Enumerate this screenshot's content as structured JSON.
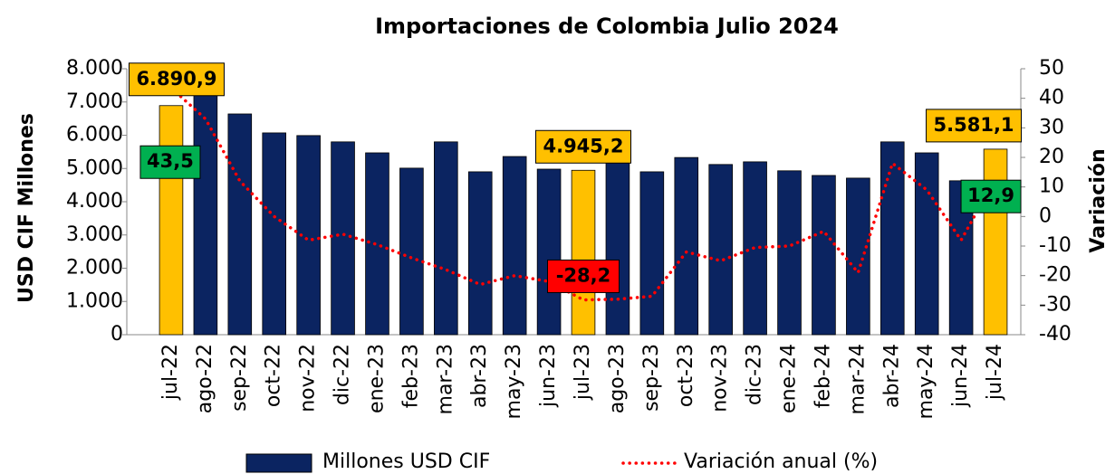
{
  "chart_data": {
    "type": "bar-line",
    "title": "Importaciones de Colombia Julio 2024",
    "y_label": "USD CIF Millones",
    "y2_label": "Variación",
    "categories": [
      "jul-22",
      "ago-22",
      "sep-22",
      "oct-22",
      "nov-22",
      "dic-22",
      "ene-23",
      "feb-23",
      "mar-23",
      "abr-23",
      "may-23",
      "jun-23",
      "jul-23",
      "ago-23",
      "sep-23",
      "oct-23",
      "nov-23",
      "dic-23",
      "ene-24",
      "feb-24",
      "mar-24",
      "abr-24",
      "may-24",
      "jun-24",
      "jul-24"
    ],
    "series": [
      {
        "name": "Millones USD CIF",
        "type": "bar",
        "color": "#0b2461",
        "highlight_color": "#ffc000",
        "highlight": [
          true,
          false,
          false,
          false,
          false,
          false,
          false,
          false,
          false,
          false,
          false,
          false,
          true,
          false,
          false,
          false,
          false,
          false,
          false,
          false,
          false,
          false,
          false,
          false,
          true
        ],
        "values": [
          6890.9,
          7300,
          6640,
          6070,
          5990,
          5800,
          5470,
          5010,
          5800,
          4900,
          5360,
          4980,
          4945.2,
          5200,
          4900,
          5330,
          5120,
          5200,
          4930,
          4790,
          4710,
          5800,
          5470,
          4630,
          5581.1
        ],
        "value_labels": [
          "6.890,9",
          null,
          null,
          null,
          null,
          null,
          null,
          null,
          null,
          null,
          null,
          null,
          "4.945,2",
          null,
          null,
          null,
          null,
          null,
          null,
          null,
          null,
          null,
          null,
          null,
          "5.581,1"
        ]
      },
      {
        "name": "Variación anual (%)",
        "type": "line",
        "axis": "y2",
        "color": "#ff0000",
        "values": [
          43.5,
          33,
          12,
          0,
          -8,
          -6,
          -9.5,
          -14,
          -18,
          -23,
          -20,
          -22,
          -28.2,
          -28,
          -27,
          -12,
          -15,
          -10.5,
          -10,
          -5,
          -19,
          18,
          9,
          -8,
          12.9
        ],
        "value_labels": [
          "43,5",
          null,
          null,
          null,
          null,
          null,
          null,
          null,
          null,
          null,
          null,
          null,
          "-28,2",
          null,
          null,
          null,
          null,
          null,
          null,
          null,
          null,
          null,
          null,
          null,
          "12,9"
        ],
        "positive_label_color": "#00b050",
        "negative_label_color": "#ff0000"
      }
    ],
    "ylim": [
      0,
      8000
    ],
    "yticks": [
      0,
      {
        "value": 1000,
        "label": "1.000"
      },
      {
        "value": 2000,
        "label": "2.000"
      },
      {
        "value": 3000,
        "label": "3.000"
      },
      {
        "value": 4000,
        "label": "4.000"
      },
      {
        "value": 5000,
        "label": "5.000"
      },
      {
        "value": 6000,
        "label": "6.000"
      },
      {
        "value": 7000,
        "label": "7.000"
      },
      {
        "value": 8000,
        "label": "8.000"
      }
    ],
    "y2lim": [
      -40,
      50
    ],
    "y2ticks": [
      -40,
      -30,
      -20,
      -10,
      0,
      10,
      20,
      30,
      40,
      50
    ]
  }
}
